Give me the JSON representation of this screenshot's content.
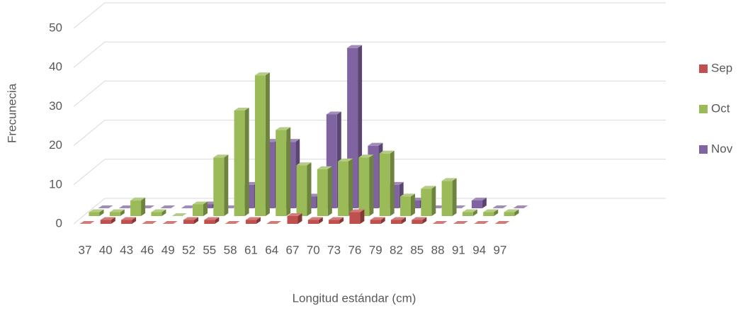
{
  "chart_data": {
    "type": "bar3d",
    "x_label": "Longitud estándar (cm)",
    "y_label": "Frecunecia",
    "categories": [
      "37",
      "40",
      "43",
      "46",
      "49",
      "52",
      "55",
      "58",
      "61",
      "64",
      "67",
      "70",
      "73",
      "76",
      "79",
      "82",
      "85",
      "88",
      "91",
      "94",
      "97"
    ],
    "series": [
      {
        "name": "Sep",
        "color": "#c0504d",
        "values": [
          0,
          1,
          1,
          0,
          0,
          1,
          1,
          0,
          1,
          0,
          2,
          1,
          1,
          3,
          1,
          1,
          1,
          0,
          0,
          0,
          0
        ]
      },
      {
        "name": "Oct",
        "color": "#9bbb59",
        "values": [
          1,
          1,
          4,
          1,
          0,
          3,
          15,
          27,
          36,
          22,
          13,
          12,
          14,
          15,
          16,
          5,
          7,
          9,
          1,
          1,
          1
        ]
      },
      {
        "name": "Nov",
        "color": "#8064a2",
        "values": [
          0,
          0,
          0,
          0,
          0,
          1,
          0,
          6,
          17,
          17,
          3,
          24,
          41,
          16,
          6,
          2,
          0,
          0,
          2,
          0,
          0
        ]
      }
    ],
    "ylim": [
      0,
      50
    ],
    "yticks": [
      0,
      10,
      20,
      30,
      40,
      50
    ],
    "grid": true,
    "legend": "right"
  }
}
